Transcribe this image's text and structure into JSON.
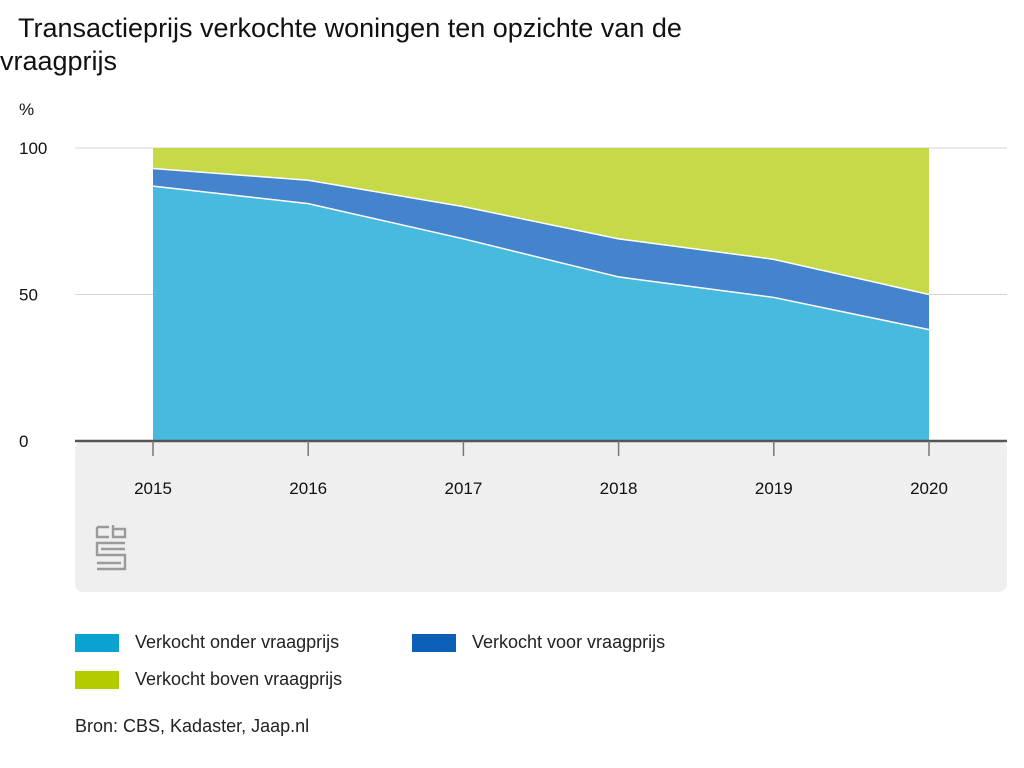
{
  "chart_data": {
    "type": "area",
    "stacked": true,
    "title": "Transactieprijs verkochte woningen ten opzichte van de vraagprijs",
    "ylabel": "%",
    "xlabel": "",
    "ylim": [
      0,
      100
    ],
    "yticks": [
      0,
      50,
      100
    ],
    "categories": [
      "2015",
      "2016",
      "2017",
      "2018",
      "2019",
      "2020"
    ],
    "series": [
      {
        "name": "Verkocht onder vraagprijs",
        "color": "#42b8dc",
        "values": [
          87,
          81,
          69,
          56,
          49,
          38
        ]
      },
      {
        "name": "Verkocht voor vraagprijs",
        "color": "#3e80ca",
        "values": [
          6,
          8,
          11,
          13,
          13,
          12
        ]
      },
      {
        "name": "Verkocht boven vraagprijs",
        "color": "#c4d843",
        "values": [
          7,
          11,
          20,
          31,
          38,
          50
        ]
      }
    ],
    "legend_position": "bottom",
    "grid": true,
    "source": "Bron: CBS, Kadaster, Jaap.nl"
  }
}
